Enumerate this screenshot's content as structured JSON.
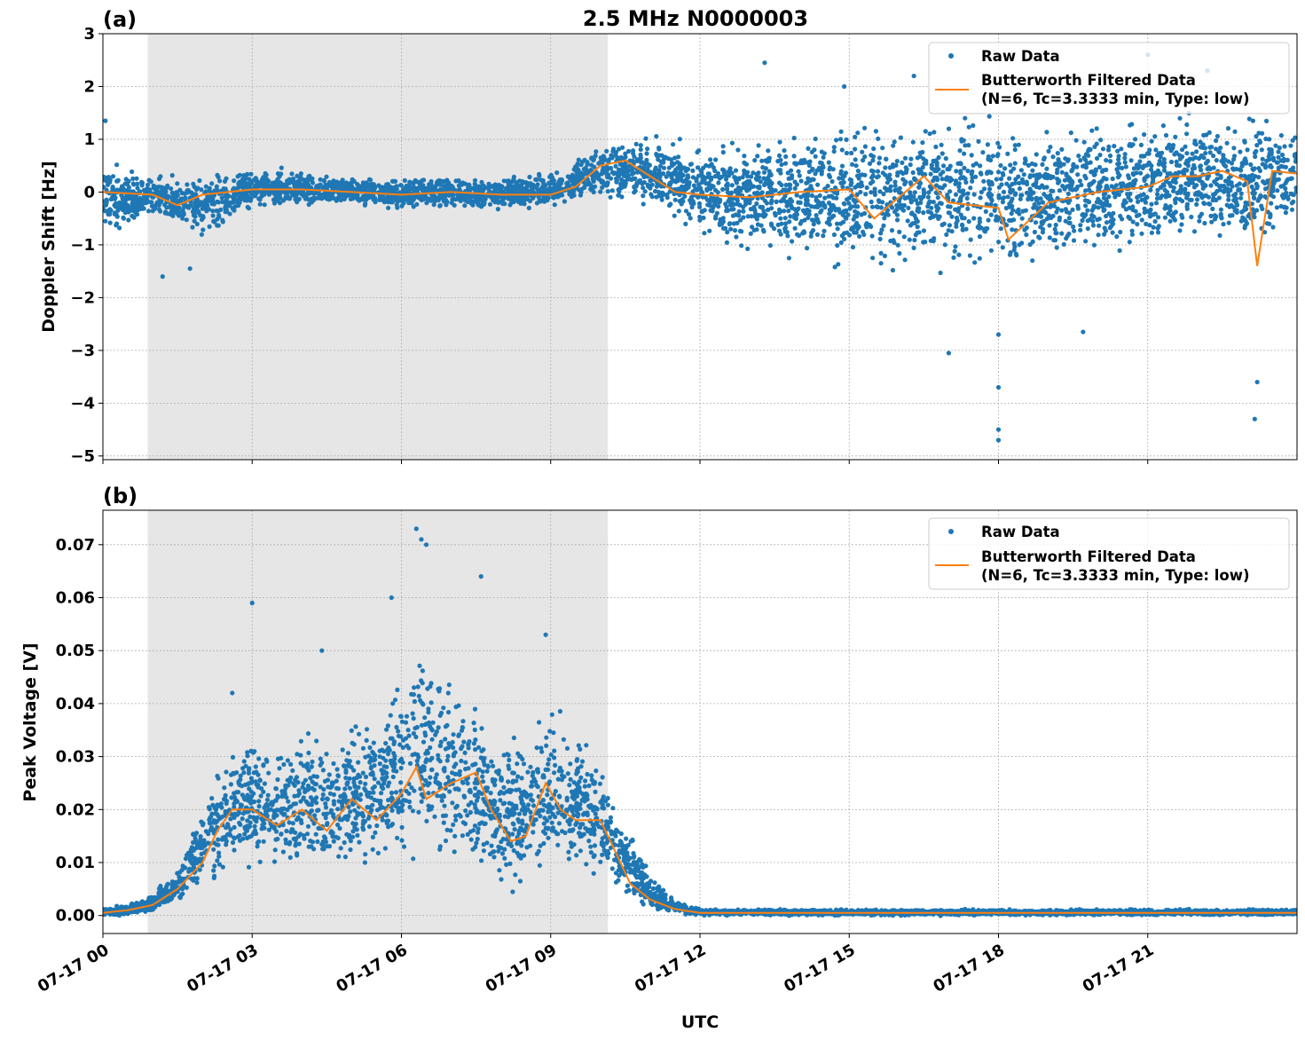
{
  "title": "2.5 MHz N0000003",
  "colors": {
    "raw": "#1f77b4",
    "filtered": "#ff7f0e",
    "shade": "#e6e6e6",
    "grid": "#b0b0b0"
  },
  "xaxis": {
    "label": "UTC",
    "range_hours": [
      0,
      24
    ],
    "ticks": [
      0,
      3,
      6,
      9,
      12,
      15,
      18,
      21
    ],
    "tick_labels": [
      "07-17 00",
      "07-17 03",
      "07-17 06",
      "07-17 09",
      "07-17 12",
      "07-17 15",
      "07-17 18",
      "07-17 21"
    ]
  },
  "shaded_interval_hours": [
    0.9,
    10.15
  ],
  "legend": {
    "raw": "Raw Data",
    "filtered_line1": "Butterworth Filtered Data",
    "filtered_line2": "(N=6, Tc=3.3333 min, Type: low)",
    "placement": "upper-right"
  },
  "chart_data": [
    {
      "type": "scatter+line",
      "panel_label": "(a)",
      "ylabel": "Doppler Shift [Hz]",
      "ylim": [
        -5.07,
        3.0
      ],
      "yticks": [
        3,
        2,
        1,
        0,
        -1,
        -2,
        -3,
        -4,
        -5
      ],
      "ytick_labels": [
        "3",
        "2",
        "1",
        "0",
        "−1",
        "−2",
        "−3",
        "−4",
        "−5"
      ],
      "grid": true,
      "raw_envelope": {
        "x": [
          0,
          1,
          2,
          3,
          4,
          5,
          6,
          7,
          8,
          9,
          10,
          11,
          12,
          13,
          14,
          15,
          16,
          17,
          18,
          19,
          20,
          21,
          22,
          23,
          24
        ],
        "low": [
          -0.8,
          -0.5,
          -0.9,
          -0.3,
          -0.3,
          -0.25,
          -0.35,
          -0.3,
          -0.35,
          -0.3,
          -0.1,
          -0.3,
          -0.8,
          -1.1,
          -1.2,
          -1.5,
          -1.5,
          -1.4,
          -1.6,
          -1.3,
          -1.2,
          -1.0,
          -0.9,
          -1.2,
          -0.6
        ],
        "high": [
          0.6,
          0.3,
          0.3,
          0.45,
          0.4,
          0.3,
          0.25,
          0.3,
          0.25,
          0.4,
          0.9,
          1.1,
          0.8,
          1.0,
          1.1,
          1.3,
          1.5,
          1.4,
          1.4,
          1.3,
          1.3,
          1.4,
          1.5,
          1.5,
          1.3
        ]
      },
      "raw_outliers": [
        [
          13.3,
          2.45
        ],
        [
          18.0,
          -4.7
        ],
        [
          18.0,
          -4.5
        ],
        [
          18.0,
          -3.7
        ],
        [
          17.0,
          -3.05
        ],
        [
          23.15,
          -4.3
        ],
        [
          23.2,
          -3.6
        ],
        [
          19.7,
          -2.65
        ],
        [
          18.0,
          -2.7
        ],
        [
          16.3,
          2.2
        ],
        [
          0.05,
          1.35
        ],
        [
          1.2,
          -1.6
        ],
        [
          1.75,
          -1.45
        ],
        [
          14.9,
          2.0
        ],
        [
          21.0,
          2.6
        ],
        [
          22.2,
          2.3
        ]
      ],
      "filtered": {
        "x": [
          0,
          1,
          1.5,
          2,
          3,
          4,
          5,
          6,
          7,
          8,
          9,
          9.5,
          10,
          10.5,
          11,
          11.5,
          12,
          13,
          14,
          15,
          15.5,
          16,
          16.5,
          17,
          18,
          18.2,
          19,
          20,
          21,
          21.5,
          22,
          22.5,
          23,
          23.2,
          23.5,
          24
        ],
        "y": [
          0,
          -0.05,
          -0.25,
          -0.05,
          0.05,
          0.05,
          0,
          -0.05,
          0,
          -0.05,
          -0.05,
          0.1,
          0.5,
          0.6,
          0.3,
          0,
          -0.05,
          -0.1,
          0,
          0.05,
          -0.5,
          -0.1,
          0.3,
          -0.2,
          -0.3,
          -0.9,
          -0.2,
          0,
          0.1,
          0.3,
          0.3,
          0.4,
          0.2,
          -1.4,
          0.4,
          0.35
        ]
      }
    },
    {
      "type": "scatter+line",
      "panel_label": "(b)",
      "ylabel": "Peak Voltage [V]",
      "ylim": [
        -0.0034,
        0.0765
      ],
      "yticks": [
        0.07,
        0.06,
        0.05,
        0.04,
        0.03,
        0.02,
        0.01,
        0.0
      ],
      "ytick_labels": [
        "0.07",
        "0.06",
        "0.05",
        "0.04",
        "0.03",
        "0.02",
        "0.01",
        "0.00"
      ],
      "grid": true,
      "raw_envelope": {
        "x": [
          0,
          0.5,
          1,
          1.5,
          2,
          2.5,
          3,
          3.5,
          4,
          4.5,
          5,
          5.5,
          6,
          6.5,
          7,
          7.5,
          8,
          8.5,
          9,
          9.5,
          10,
          10.5,
          11,
          11.5,
          12,
          24
        ],
        "low": [
          0,
          0,
          0.0005,
          0.002,
          0.004,
          0.008,
          0.008,
          0.007,
          0.007,
          0.007,
          0.008,
          0.009,
          0.009,
          0.01,
          0.009,
          0.008,
          0.005,
          0.006,
          0.008,
          0.009,
          0.008,
          0.004,
          0.001,
          0.0003,
          0,
          0
        ],
        "high": [
          0.0015,
          0.002,
          0.004,
          0.009,
          0.022,
          0.03,
          0.035,
          0.032,
          0.035,
          0.033,
          0.037,
          0.04,
          0.045,
          0.05,
          0.045,
          0.042,
          0.032,
          0.035,
          0.04,
          0.035,
          0.028,
          0.018,
          0.008,
          0.003,
          0.0012,
          0.0012
        ]
      },
      "raw_outliers": [
        [
          6.3,
          0.073
        ],
        [
          6.4,
          0.071
        ],
        [
          6.5,
          0.07
        ],
        [
          7.6,
          0.064
        ],
        [
          3.0,
          0.059
        ],
        [
          4.4,
          0.05
        ],
        [
          8.9,
          0.053
        ],
        [
          5.8,
          0.06
        ],
        [
          2.6,
          0.042
        ]
      ],
      "filtered": {
        "x": [
          0,
          0.5,
          1,
          1.5,
          2,
          2.3,
          2.6,
          3,
          3.5,
          4,
          4.5,
          5,
          5.5,
          6,
          6.3,
          6.5,
          7,
          7.5,
          7.8,
          8.2,
          8.5,
          8.9,
          9.2,
          9.5,
          10,
          10.3,
          10.6,
          11,
          11.5,
          12,
          24
        ],
        "y": [
          0.0005,
          0.001,
          0.002,
          0.005,
          0.01,
          0.016,
          0.02,
          0.02,
          0.017,
          0.02,
          0.016,
          0.022,
          0.018,
          0.023,
          0.028,
          0.022,
          0.025,
          0.027,
          0.02,
          0.014,
          0.015,
          0.025,
          0.02,
          0.018,
          0.018,
          0.012,
          0.006,
          0.003,
          0.0012,
          0.0005,
          0.0005
        ]
      }
    }
  ]
}
